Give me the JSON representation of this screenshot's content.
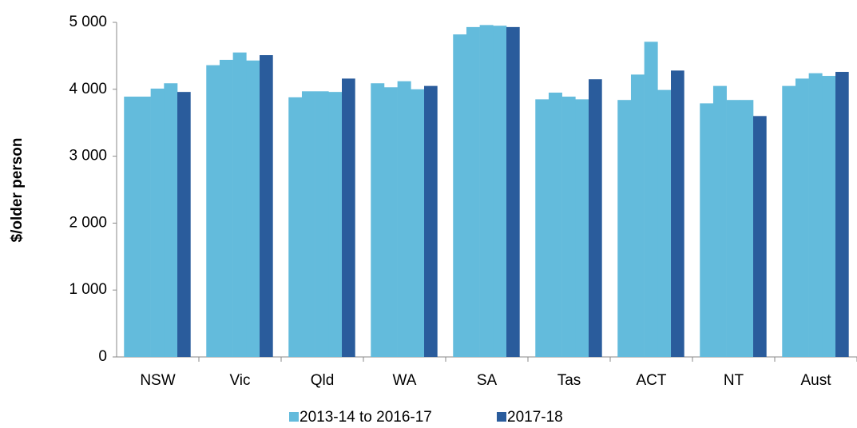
{
  "chart_data": {
    "type": "bar",
    "y_label": "$/older person",
    "categories": [
      "NSW",
      "Vic",
      "Qld",
      "WA",
      "SA",
      "Tas",
      "ACT",
      "NT",
      "Aust"
    ],
    "series": [
      {
        "name": "2013-14 to 2016-17",
        "color": "#63bbdc",
        "values": [
          [
            3890,
            3890,
            4010,
            4090
          ],
          [
            4360,
            4440,
            4550,
            4430
          ],
          [
            3880,
            3970,
            3970,
            3960
          ],
          [
            4090,
            4030,
            4120,
            4000
          ],
          [
            4820,
            4930,
            4960,
            4950
          ],
          [
            3850,
            3950,
            3890,
            3850
          ],
          [
            3840,
            4220,
            4710,
            3990
          ],
          [
            3790,
            4050,
            3840,
            3840
          ],
          [
            4050,
            4160,
            4240,
            4200
          ]
        ]
      },
      {
        "name": "2017-18",
        "color": "#2a5c9c",
        "values": [
          3960,
          4510,
          4160,
          4050,
          4930,
          4150,
          4280,
          3600,
          4260
        ]
      }
    ],
    "ylim": [
      0,
      5000
    ],
    "yticks": [
      0,
      {
        "value": 1000,
        "label": "1 000"
      },
      {
        "value": 2000,
        "label": "2 000"
      },
      {
        "value": 3000,
        "label": "3 000"
      },
      {
        "value": 4000,
        "label": "4 000"
      },
      {
        "value": 5000,
        "label": "5 000"
      }
    ],
    "grid": false
  }
}
